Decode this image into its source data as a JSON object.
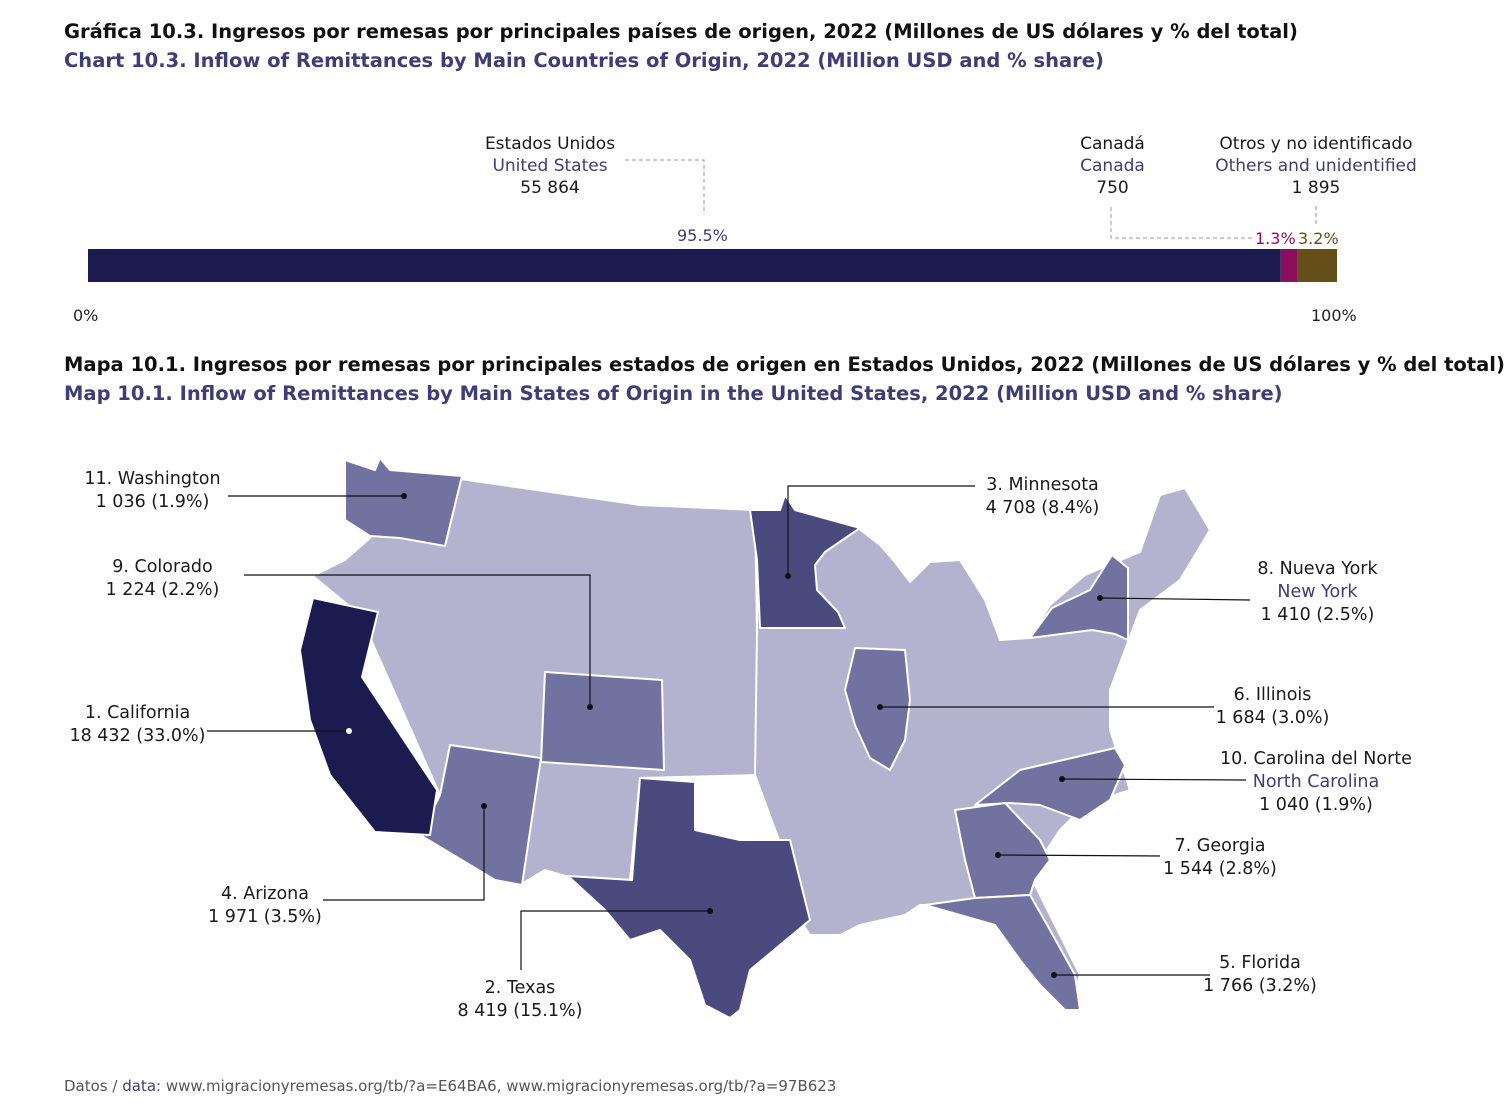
{
  "chart_title": {
    "es": "Gráfica 10.3. Ingresos por remesas por principales países de origen, 2022 (Millones de US dólares y % del total)",
    "en": "Chart 10.3. Inflow of Remittances by Main Countries of Origin, 2022 (Million USD and % share)"
  },
  "map_title": {
    "es": "Mapa 10.1. Ingresos por remesas por principales estados de origen en Estados Unidos, 2022 (Millones de US dólares y % del total)",
    "en": "Map 10.1. Inflow of Remittances by Main States of Origin in the United States, 2022 (Million USD and % share)"
  },
  "chart_data": [
    {
      "type": "bar",
      "orientation": "horizontal-stacked",
      "title": "Inflow of Remittances by Main Countries of Origin, 2022 (Million USD and % share)",
      "xlim": [
        0,
        100
      ],
      "ticks": [
        "0%",
        "100%"
      ],
      "series": [
        {
          "name_es": "Estados Unidos",
          "name_en": "United States",
          "value": "55 864",
          "share": 95.5,
          "share_label": "95.5%",
          "color": "#1b1b50"
        },
        {
          "name_es": "Canadá",
          "name_en": "Canada",
          "value": "750",
          "share": 1.3,
          "share_label": "1.3%",
          "color": "#8c0f5e"
        },
        {
          "name_es": "Otros y no identificado",
          "name_en": "Others and unidentified",
          "value": "1 895",
          "share": 3.2,
          "share_label": "3.2%",
          "color": "#654f18"
        }
      ]
    },
    {
      "type": "choropleth",
      "title": "Inflow of Remittances by Main States of Origin in the United States, 2022 (Million USD and % share)",
      "states": [
        {
          "rank_label": "1. California",
          "value": "18 432",
          "share": "33.0%",
          "summary": "18 432 (33.0%)"
        },
        {
          "rank_label": "2. Texas",
          "value": "8 419",
          "share": "15.1%",
          "summary": "8 419 (15.1%)"
        },
        {
          "rank_label": "3. Minnesota",
          "value": "4 708",
          "share": "8.4%",
          "summary": "4 708 (8.4%)"
        },
        {
          "rank_label": "4. Arizona",
          "value": "1 971",
          "share": "3.5%",
          "summary": "1 971 (3.5%)"
        },
        {
          "rank_label": "5. Florida",
          "value": "1 766",
          "share": "3.2%",
          "summary": "1 766 (3.2%)"
        },
        {
          "rank_label": "6. Illinois",
          "value": "1 684",
          "share": "3.0%",
          "summary": "1 684 (3.0%)"
        },
        {
          "rank_label": "7. Georgia",
          "value": "1 544",
          "share": "2.8%",
          "summary": "1 544 (2.8%)"
        },
        {
          "rank_label": "8. Nueva York",
          "name_en": "New York",
          "value": "1 410",
          "share": "2.5%",
          "summary": "1 410 (2.5%)"
        },
        {
          "rank_label": "9. Colorado",
          "value": "1 224",
          "share": "2.2%",
          "summary": "1 224 (2.2%)"
        },
        {
          "rank_label": "10. Carolina del Norte",
          "name_en": "North Carolina",
          "value": "1 040",
          "share": "1.9%",
          "summary": "1 040 (1.9%)"
        },
        {
          "rank_label": "11. Washington",
          "value": "1 036",
          "share": "1.9%",
          "summary": "1 036 (1.9%)"
        }
      ],
      "colors": {
        "base": "#b3b3cf",
        "tier1": "#1b1b50",
        "tier2": "#4a4a7e",
        "tier3": "#7272a0",
        "border": "#ffffff"
      }
    }
  ],
  "source": {
    "prefix": "Datos / ",
    "label": "data",
    "text": ": www.migracionyremesas.org/tb/?a=E64BA6, www.migracionyremesas.org/tb/?a=97B623"
  }
}
